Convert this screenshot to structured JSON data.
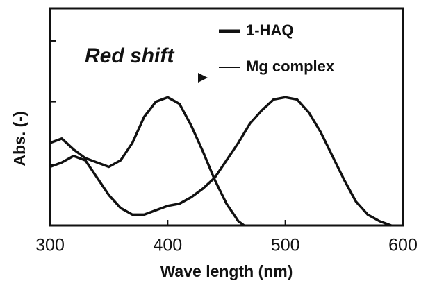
{
  "chart_data": {
    "type": "line",
    "xlabel": "Wave length (nm)",
    "ylabel": "Abs. (-)",
    "annotation": "Red shift",
    "xlim": [
      300,
      600
    ],
    "xticks": [
      300,
      400,
      500,
      600
    ],
    "ylim": [
      0,
      1
    ],
    "yticks": [
      0.28,
      0.57,
      0.85
    ],
    "series": [
      {
        "name": "1-HAQ",
        "color": "#111111",
        "legend_width": 5,
        "x": [
          300,
          310,
          320,
          330,
          340,
          350,
          360,
          370,
          380,
          390,
          400,
          410,
          420,
          430,
          440,
          450,
          460,
          465
        ],
        "values": [
          0.38,
          0.4,
          0.35,
          0.31,
          0.29,
          0.27,
          0.3,
          0.38,
          0.5,
          0.57,
          0.59,
          0.56,
          0.46,
          0.34,
          0.21,
          0.1,
          0.02,
          0
        ]
      },
      {
        "name": "Mg complex",
        "color": "#111111",
        "legend_width": 2,
        "x": [
          300,
          310,
          320,
          330,
          340,
          350,
          360,
          370,
          380,
          390,
          400,
          410,
          420,
          430,
          440,
          450,
          460,
          470,
          480,
          490,
          500,
          510,
          520,
          530,
          540,
          550,
          560,
          570,
          580,
          590
        ],
        "values": [
          0.27,
          0.29,
          0.32,
          0.3,
          0.22,
          0.14,
          0.08,
          0.05,
          0.05,
          0.07,
          0.09,
          0.1,
          0.13,
          0.17,
          0.22,
          0.3,
          0.38,
          0.47,
          0.53,
          0.58,
          0.59,
          0.58,
          0.52,
          0.43,
          0.32,
          0.21,
          0.11,
          0.05,
          0.02,
          0
        ]
      }
    ]
  }
}
